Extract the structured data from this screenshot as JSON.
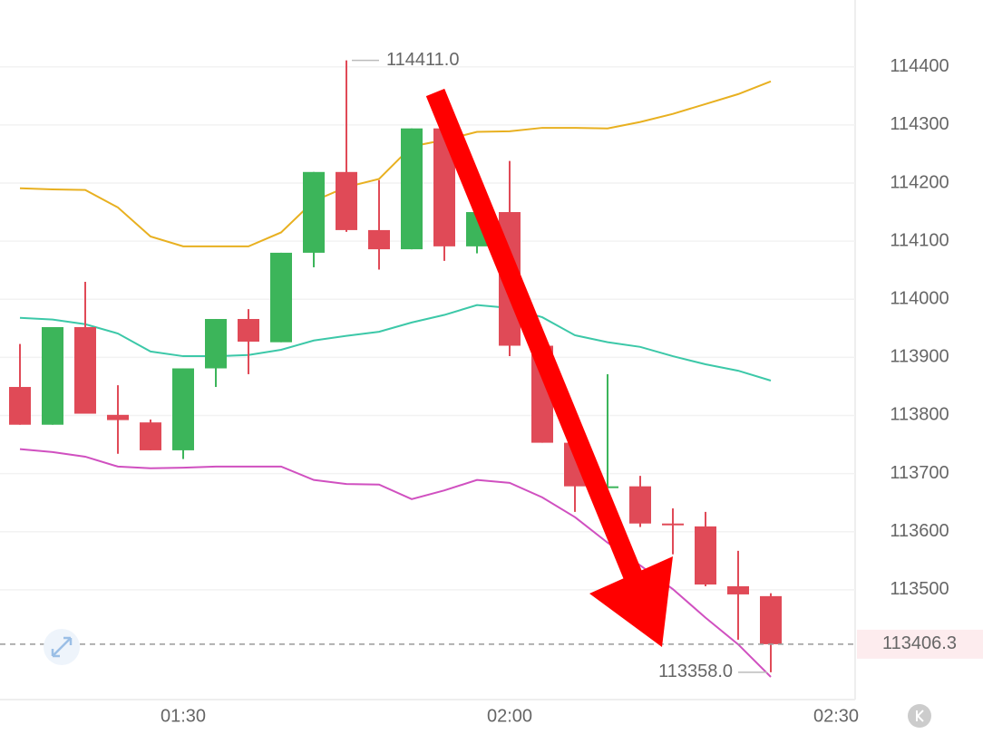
{
  "chart_data": {
    "type": "candlestick",
    "categories": [
      null,
      null,
      null,
      null,
      null,
      "01:30",
      null,
      null,
      null,
      null,
      null,
      null,
      null,
      null,
      null,
      "02:00",
      null,
      null,
      null,
      null,
      null,
      null,
      null,
      null,
      null,
      "02:30"
    ],
    "open": [
      113849,
      113784,
      113952,
      113801,
      113788,
      113740,
      113881,
      113966,
      113926,
      114080,
      114219,
      114119,
      114086,
      114294,
      114091,
      114150,
      113920,
      113753,
      113675,
      113678,
      113614,
      113609,
      113506,
      113489,
      null,
      null
    ],
    "high": [
      113923,
      113952,
      114030,
      113852,
      113793,
      113881,
      113966,
      113983,
      114080,
      114219,
      114411,
      114205,
      114294,
      114294,
      114150,
      114238,
      113920,
      113753,
      113871,
      113696,
      113640,
      113634,
      113567,
      113494,
      null,
      null
    ],
    "low": [
      113784,
      113784,
      113803,
      113734,
      113740,
      113725,
      113849,
      113871,
      113926,
      114055,
      114116,
      114051,
      114086,
      114066,
      114079,
      113902,
      113753,
      113634,
      113675,
      113608,
      113561,
      113506,
      113414,
      113358,
      null,
      null
    ],
    "close": [
      113784,
      113952,
      113803,
      113792,
      113740,
      113881,
      113966,
      113927,
      114080,
      114219,
      114119,
      114086,
      114294,
      114091,
      114150,
      113920,
      113753,
      113678,
      113678,
      113614,
      113611,
      113509,
      113492,
      113406.3,
      null,
      null
    ],
    "up_color": "#3cb55a",
    "down_color": "#e04a57",
    "overlays": [
      {
        "color": "#e8b020",
        "values": [
          114191,
          114189,
          114188,
          114158,
          114108,
          114091,
          114091,
          114091,
          114115,
          114169,
          114193,
          114207,
          114263,
          114274,
          114288,
          114289,
          114295,
          114295,
          114294,
          114305,
          114319,
          114336,
          114353,
          114375,
          null,
          null
        ]
      },
      {
        "color": "#3cc8a8",
        "values": [
          113968,
          113965,
          113957,
          113941,
          113910,
          113902,
          113902,
          113904,
          113913,
          113929,
          113937,
          113944,
          113960,
          113973,
          113990,
          113985,
          113969,
          113938,
          113926,
          113918,
          113902,
          113888,
          113877,
          113860,
          null,
          null
        ]
      },
      {
        "color": "#d050c0",
        "values": [
          113742,
          113737,
          113729,
          113712,
          113709,
          113710,
          113712,
          113712,
          113712,
          113689,
          113682,
          113681,
          113656,
          113671,
          113689,
          113684,
          113659,
          113625,
          113581,
          113542,
          113501,
          113452,
          113406,
          113350,
          null,
          null
        ]
      }
    ],
    "ylim": [
      113311,
      114515
    ],
    "yticks": [
      113500,
      113600,
      113700,
      113800,
      113900,
      114000,
      114100,
      114200,
      114300,
      114400
    ],
    "grid": true,
    "annotations": [
      {
        "value": 114411,
        "label": "114411.0",
        "kind": "high"
      },
      {
        "value": 113358,
        "label": "113358.0",
        "kind": "low"
      },
      {
        "value": 113406.3,
        "label": "113406.3",
        "kind": "last"
      }
    ]
  }
}
